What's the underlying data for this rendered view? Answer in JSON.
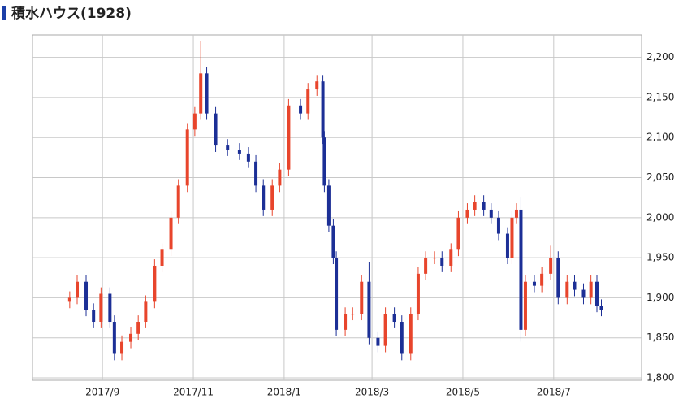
{
  "chart_data": {
    "type": "candlestick",
    "title": "積水ハウス(1928)",
    "up_color": "#e8452c",
    "down_color": "#1c2f96",
    "grid": true,
    "x": [
      9,
      14,
      20,
      25,
      30,
      36,
      39,
      44,
      50,
      55,
      60,
      66,
      71,
      77,
      82,
      88,
      93,
      97,
      101,
      107,
      115,
      123,
      129,
      134,
      139,
      145,
      150,
      156,
      164,
      169,
      175,
      179,
      180,
      183,
      186,
      188,
      194,
      199,
      205,
      210,
      216,
      221,
      227,
      232,
      238,
      243,
      248,
      254,
      259,
      265,
      270,
      276,
      281,
      287,
      292,
      297,
      303,
      306,
      309,
      312,
      315,
      321,
      326,
      332,
      337,
      343,
      348,
      354,
      359,
      363,
      366
    ],
    "open": [
      1895,
      1900,
      1920,
      1885,
      1870,
      1905,
      1870,
      1830,
      1845,
      1855,
      1870,
      1895,
      1940,
      1960,
      2000,
      2040,
      2110,
      2130,
      2180,
      2130,
      2090,
      2085,
      2080,
      2070,
      2040,
      2010,
      2040,
      2060,
      2140,
      2130,
      2160,
      2170,
      2100,
      2040,
      1990,
      1950,
      1860,
      1880,
      1880,
      1920,
      1850,
      1840,
      1880,
      1870,
      1830,
      1880,
      1930,
      1950,
      1950,
      1940,
      1960,
      2000,
      2010,
      2020,
      2010,
      2000,
      1980,
      1950,
      2000,
      2010,
      1860,
      1920,
      1915,
      1930,
      1950,
      1900,
      1920,
      1910,
      1900,
      1920,
      1890
    ],
    "high": [
      1908,
      1928,
      1928,
      1893,
      1913,
      1913,
      1878,
      1853,
      1863,
      1878,
      1903,
      1948,
      1968,
      2008,
      2048,
      2118,
      2138,
      2220,
      2188,
      2138,
      2098,
      2093,
      2088,
      2078,
      2048,
      2048,
      2068,
      2148,
      2148,
      2168,
      2178,
      2178,
      2108,
      2048,
      1998,
      1958,
      1888,
      1888,
      1928,
      1945,
      1858,
      1888,
      1888,
      1878,
      1888,
      1938,
      1958,
      1958,
      1958,
      1968,
      2008,
      2018,
      2028,
      2028,
      2018,
      2008,
      1988,
      2008,
      2018,
      2025,
      1928,
      1928,
      1938,
      1965,
      1958,
      1928,
      1928,
      1918,
      1928,
      1928,
      1898
    ],
    "low": [
      1887,
      1892,
      1877,
      1862,
      1862,
      1862,
      1822,
      1822,
      1837,
      1847,
      1862,
      1887,
      1932,
      1952,
      1992,
      2032,
      2102,
      2122,
      2122,
      2082,
      2077,
      2072,
      2062,
      2032,
      2002,
      2002,
      2032,
      2052,
      2122,
      2122,
      2152,
      2092,
      2032,
      1982,
      1942,
      1852,
      1852,
      1872,
      1872,
      1842,
      1832,
      1832,
      1862,
      1822,
      1822,
      1872,
      1922,
      1942,
      1932,
      1932,
      1952,
      1992,
      2002,
      2002,
      1992,
      1972,
      1942,
      1942,
      1992,
      1845,
      1852,
      1907,
      1907,
      1922,
      1892,
      1892,
      1902,
      1892,
      1892,
      1882,
      1877
    ],
    "close": [
      1900,
      1920,
      1885,
      1870,
      1905,
      1870,
      1830,
      1845,
      1855,
      1870,
      1895,
      1940,
      1960,
      2000,
      2040,
      2110,
      2130,
      2180,
      2130,
      2090,
      2085,
      2080,
      2070,
      2040,
      2010,
      2040,
      2060,
      2140,
      2130,
      2160,
      2170,
      2100,
      2040,
      1990,
      1950,
      1860,
      1880,
      1880,
      1920,
      1850,
      1840,
      1880,
      1870,
      1830,
      1880,
      1930,
      1950,
      1950,
      1940,
      1960,
      2000,
      2010,
      2020,
      2010,
      2000,
      1980,
      1950,
      2000,
      2010,
      1860,
      1920,
      1915,
      1930,
      1950,
      1900,
      1920,
      1910,
      1900,
      1920,
      1890,
      1885
    ],
    "xlim": [
      -16,
      393
    ],
    "xticks": [
      {
        "value": 31,
        "label": "2017/9"
      },
      {
        "value": 92,
        "label": "2017/11"
      },
      {
        "value": 153,
        "label": "2018/1"
      },
      {
        "value": 212,
        "label": "2018/3"
      },
      {
        "value": 273,
        "label": "2018/5"
      },
      {
        "value": 334,
        "label": "2018/7"
      }
    ],
    "ylim": [
      1797,
      2228
    ],
    "yticks": [
      {
        "value": 1800,
        "label": "1,800"
      },
      {
        "value": 1850,
        "label": "1,850"
      },
      {
        "value": 1900,
        "label": "1,900"
      },
      {
        "value": 1950,
        "label": "1,950"
      },
      {
        "value": 2000,
        "label": "2,000"
      },
      {
        "value": 2050,
        "label": "2,050"
      },
      {
        "value": 2100,
        "label": "2,100"
      },
      {
        "value": 2150,
        "label": "2,150"
      },
      {
        "value": 2200,
        "label": "2,200"
      }
    ]
  }
}
